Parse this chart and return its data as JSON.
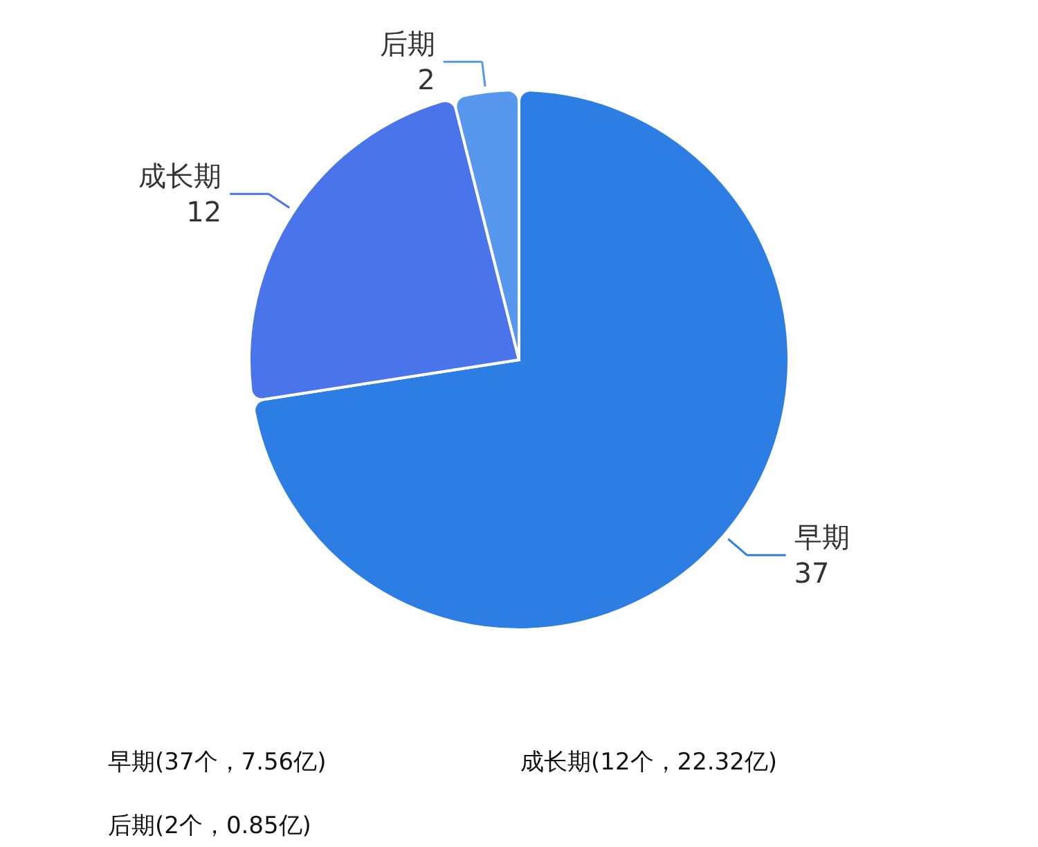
{
  "chart_data": {
    "type": "pie",
    "categories": [
      "早期",
      "成长期",
      "后期"
    ],
    "values": [
      37,
      12,
      2
    ],
    "colors": [
      "#2c7ee5",
      "#4a74ea",
      "#5897ee"
    ],
    "data_labels": true,
    "annotations": [
      "早期(37个，7.56亿)",
      "成长期(12个，22.32亿)",
      "后期(2个，0.85亿)"
    ]
  }
}
